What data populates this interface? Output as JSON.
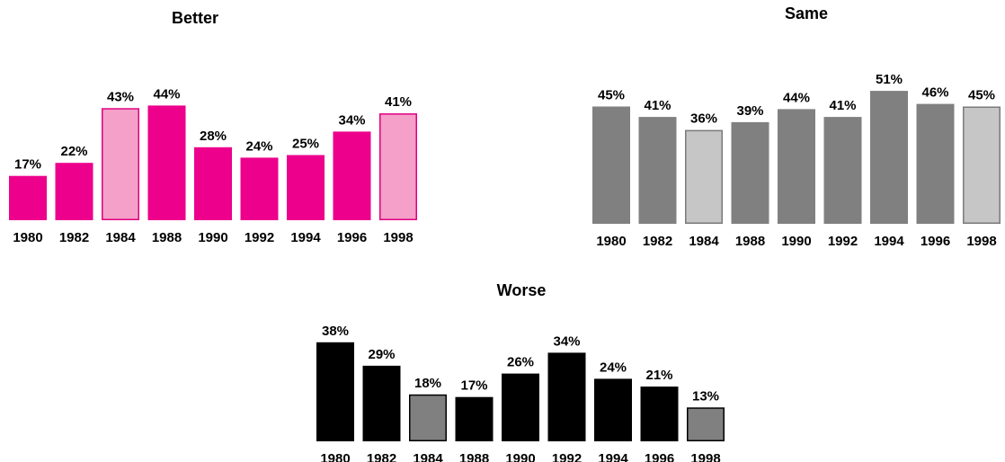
{
  "chart_data": [
    {
      "type": "bar",
      "title": "Better",
      "categories": [
        "1980",
        "1982",
        "1984",
        "1988",
        "1990",
        "1992",
        "1994",
        "1996",
        "1998"
      ],
      "values": [
        17,
        22,
        43,
        44,
        28,
        24,
        25,
        34,
        41
      ],
      "value_labels": [
        "17%",
        "22%",
        "43%",
        "44%",
        "28%",
        "24%",
        "25%",
        "34%",
        "41%"
      ],
      "colors": [
        "#ec008c",
        "#ec008c",
        "#f4a0c9",
        "#ec008c",
        "#ec008c",
        "#ec008c",
        "#ec008c",
        "#ec008c",
        "#f4a0c9"
      ],
      "edgecolors": [
        "#ec008c",
        "#ec008c",
        "#e0007f",
        "#ec008c",
        "#ec008c",
        "#ec008c",
        "#ec008c",
        "#ec008c",
        "#e0007f"
      ]
    },
    {
      "type": "bar",
      "title": "Same",
      "categories": [
        "1980",
        "1982",
        "1984",
        "1988",
        "1990",
        "1992",
        "1994",
        "1996",
        "1998"
      ],
      "values": [
        45,
        41,
        36,
        39,
        44,
        41,
        51,
        46,
        45
      ],
      "value_labels": [
        "45%",
        "41%",
        "36%",
        "39%",
        "44%",
        "41%",
        "51%",
        "46%",
        "45%"
      ],
      "colors": [
        "#808080",
        "#808080",
        "#c6c6c6",
        "#808080",
        "#808080",
        "#808080",
        "#808080",
        "#808080",
        "#c6c6c6"
      ],
      "edgecolors": [
        "#808080",
        "#808080",
        "#7a7a7a",
        "#808080",
        "#808080",
        "#808080",
        "#808080",
        "#808080",
        "#7a7a7a"
      ]
    },
    {
      "type": "bar",
      "title": "Worse",
      "categories": [
        "1980",
        "1982",
        "1984",
        "1988",
        "1990",
        "1992",
        "1994",
        "1996",
        "1998"
      ],
      "values": [
        38,
        29,
        18,
        17,
        26,
        34,
        24,
        21,
        13
      ],
      "value_labels": [
        "38%",
        "29%",
        "18%",
        "17%",
        "26%",
        "34%",
        "24%",
        "21%",
        "13%"
      ],
      "colors": [
        "#000000",
        "#000000",
        "#808080",
        "#000000",
        "#000000",
        "#000000",
        "#000000",
        "#000000",
        "#808080"
      ],
      "edgecolors": [
        "#000000",
        "#000000",
        "#000000",
        "#000000",
        "#000000",
        "#000000",
        "#000000",
        "#000000",
        "#000000"
      ]
    }
  ]
}
